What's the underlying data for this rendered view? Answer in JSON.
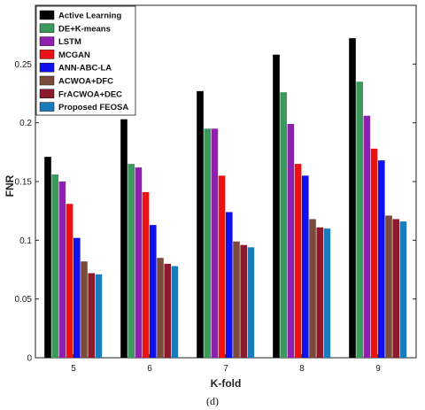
{
  "caption": "(d)",
  "chart_data": {
    "type": "bar",
    "xlabel": "K-fold",
    "ylabel": "FNR",
    "categories": [
      "5",
      "6",
      "7",
      "8",
      "9"
    ],
    "ylim": [
      0,
      0.3
    ],
    "yticks": [
      0,
      0.05,
      0.1,
      0.15,
      0.2,
      0.25
    ],
    "ytick_labels": [
      "0",
      "0.05",
      "0.1",
      "0.15",
      "0.2",
      "0.25"
    ],
    "grid": false,
    "legend_position": "top-left",
    "series": [
      {
        "name": "Active Learning",
        "color": "#000000",
        "values": [
          0.171,
          0.203,
          0.227,
          0.258,
          0.272
        ]
      },
      {
        "name": "DE+K-means",
        "color": "#3a9a5b",
        "values": [
          0.156,
          0.165,
          0.195,
          0.226,
          0.235
        ]
      },
      {
        "name": "LSTM",
        "color": "#8e1fb0",
        "values": [
          0.15,
          0.162,
          0.195,
          0.199,
          0.206
        ]
      },
      {
        "name": "MCGAN",
        "color": "#ee1111",
        "values": [
          0.131,
          0.141,
          0.155,
          0.165,
          0.178
        ]
      },
      {
        "name": "ANN-ABC-LA",
        "color": "#1010ee",
        "values": [
          0.102,
          0.113,
          0.124,
          0.155,
          0.168
        ]
      },
      {
        "name": "ACWOA+DFC",
        "color": "#7a4a3a",
        "values": [
          0.082,
          0.085,
          0.099,
          0.118,
          0.121
        ]
      },
      {
        "name": "FrACWOA+DEC",
        "color": "#8b1a2c",
        "values": [
          0.072,
          0.08,
          0.096,
          0.111,
          0.118
        ]
      },
      {
        "name": "Proposed FEOSA",
        "color": "#1a7bbd",
        "values": [
          0.071,
          0.078,
          0.094,
          0.11,
          0.116
        ]
      }
    ]
  }
}
